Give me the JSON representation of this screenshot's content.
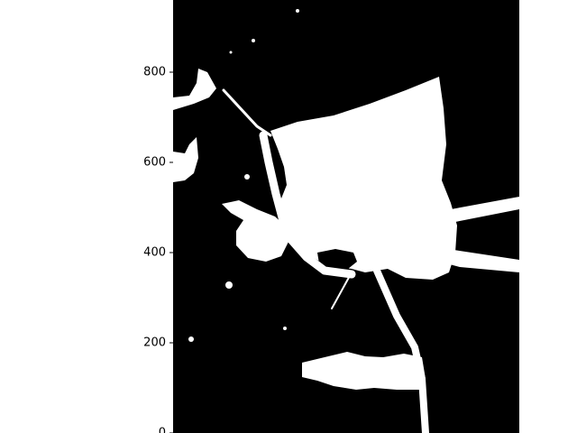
{
  "chart_data": {
    "type": "heatmap",
    "title": "",
    "xlabel": "",
    "ylabel": "",
    "colormap": "gray (binary mask)",
    "colors": {
      "background": "#000000",
      "foreground": "#ffffff"
    },
    "y_ticks": [
      {
        "value": 0,
        "label": "0"
      },
      {
        "value": 200,
        "label": "200"
      },
      {
        "value": 400,
        "label": "400"
      },
      {
        "value": 600,
        "label": "600"
      },
      {
        "value": 800,
        "label": "800"
      }
    ],
    "ylim": [
      0,
      960
    ],
    "x_ticks_visible": false,
    "grid": false,
    "legend": "none"
  }
}
